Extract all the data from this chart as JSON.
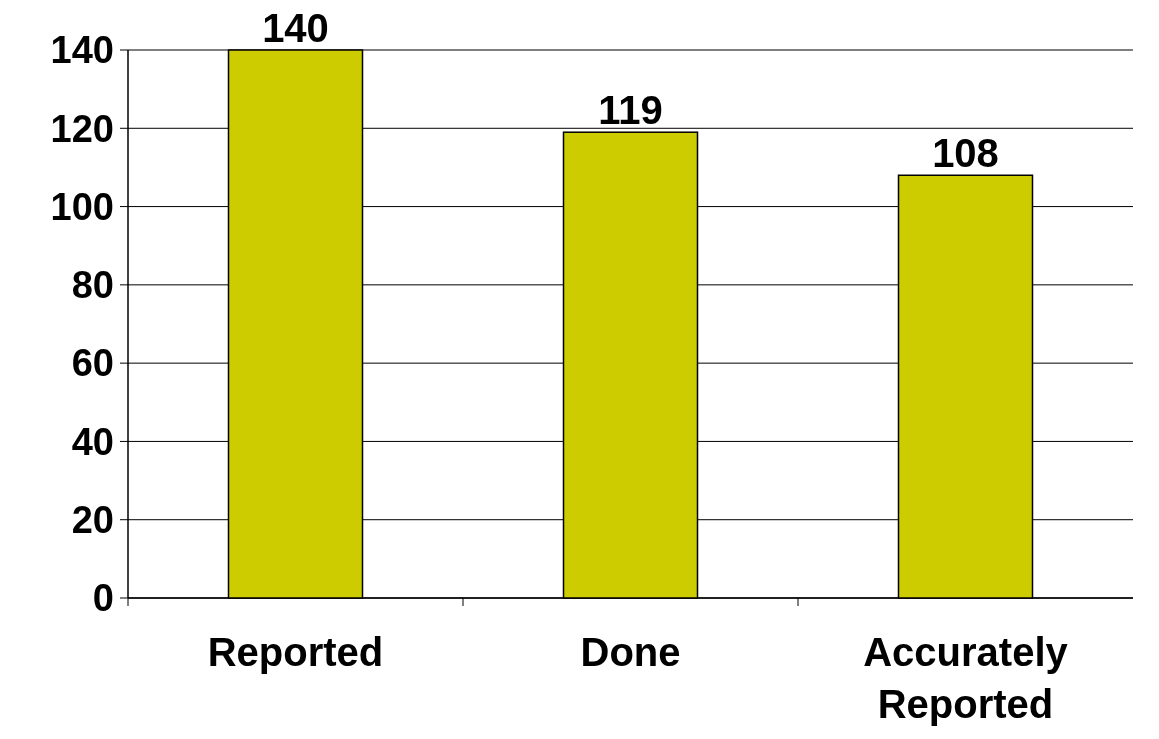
{
  "chart_data": {
    "type": "bar",
    "categories": [
      "Reported",
      "Done",
      "Accurately Reported"
    ],
    "values": [
      140,
      119,
      108
    ],
    "color": "#cccc00",
    "ylim": [
      0,
      140
    ],
    "yticks": [
      0,
      20,
      40,
      60,
      80,
      100,
      120,
      140
    ],
    "grid": "y",
    "data_labels": true
  }
}
